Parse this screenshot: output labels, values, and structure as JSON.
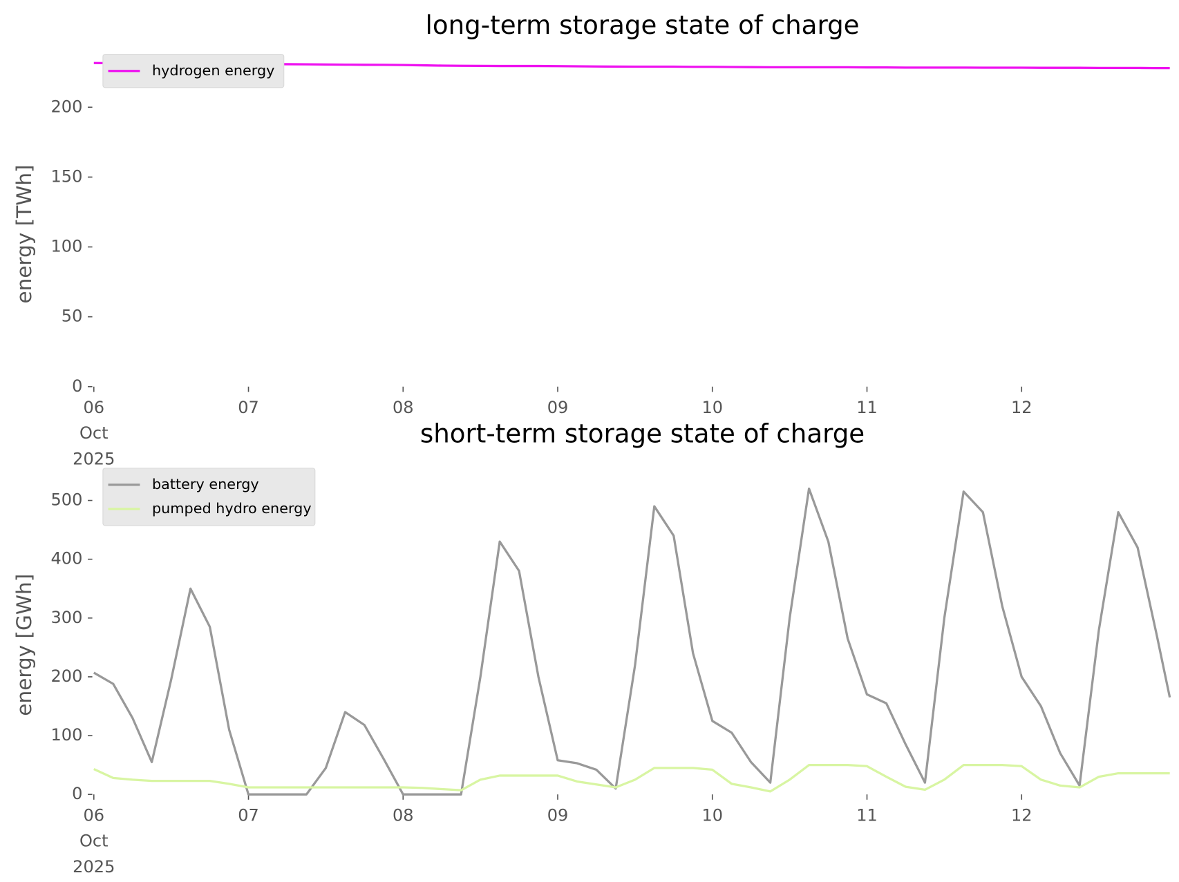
{
  "chart_data": [
    {
      "type": "line",
      "title": "long-term storage state of charge",
      "y_label": "energy [TWh]",
      "x": [
        "2025-10-06T00:00",
        "2025-10-06T03:00",
        "2025-10-06T06:00",
        "2025-10-06T09:00",
        "2025-10-06T12:00",
        "2025-10-06T15:00",
        "2025-10-06T18:00",
        "2025-10-06T21:00",
        "2025-10-07T00:00",
        "2025-10-07T03:00",
        "2025-10-07T06:00",
        "2025-10-07T09:00",
        "2025-10-07T12:00",
        "2025-10-07T15:00",
        "2025-10-07T18:00",
        "2025-10-07T21:00",
        "2025-10-08T00:00",
        "2025-10-08T03:00",
        "2025-10-08T06:00",
        "2025-10-08T09:00",
        "2025-10-08T12:00",
        "2025-10-08T15:00",
        "2025-10-08T18:00",
        "2025-10-08T21:00",
        "2025-10-09T00:00",
        "2025-10-09T03:00",
        "2025-10-09T06:00",
        "2025-10-09T09:00",
        "2025-10-09T12:00",
        "2025-10-09T15:00",
        "2025-10-09T18:00",
        "2025-10-09T21:00",
        "2025-10-10T00:00",
        "2025-10-10T03:00",
        "2025-10-10T06:00",
        "2025-10-10T09:00",
        "2025-10-10T12:00",
        "2025-10-10T15:00",
        "2025-10-10T18:00",
        "2025-10-10T21:00",
        "2025-10-11T00:00",
        "2025-10-11T03:00",
        "2025-10-11T06:00",
        "2025-10-11T09:00",
        "2025-10-11T12:00",
        "2025-10-11T15:00",
        "2025-10-11T18:00",
        "2025-10-11T21:00",
        "2025-10-12T00:00",
        "2025-10-12T03:00",
        "2025-10-12T06:00",
        "2025-10-12T09:00",
        "2025-10-12T12:00",
        "2025-10-12T15:00",
        "2025-10-12T18:00",
        "2025-10-12T21:00",
        "2025-10-12T23:00"
      ],
      "series": [
        {
          "name": "hydrogen energy",
          "color": "#ee12f0",
          "values": [
            231.6,
            231.5,
            231.4,
            231.3,
            231.2,
            231.1,
            231.0,
            231.0,
            230.9,
            230.9,
            230.8,
            230.7,
            230.6,
            230.5,
            230.4,
            230.3,
            230.2,
            230.0,
            229.8,
            229.7,
            229.6,
            229.5,
            229.5,
            229.5,
            229.4,
            229.3,
            229.2,
            229.1,
            229.0,
            229.0,
            229.0,
            228.9,
            228.9,
            228.8,
            228.7,
            228.6,
            228.6,
            228.6,
            228.6,
            228.6,
            228.5,
            228.5,
            228.4,
            228.4,
            228.4,
            228.4,
            228.3,
            228.3,
            228.3,
            228.2,
            228.2,
            228.2,
            228.1,
            228.1,
            228.1,
            228.0,
            228.0
          ]
        }
      ],
      "xlim": [
        "2025-10-06T00:00",
        "2025-10-12T23:00"
      ],
      "xticks": [
        {
          "value": "2025-10-06T00:00",
          "label": "06\nOct\n2025"
        },
        {
          "value": "2025-10-07T00:00",
          "label": "07"
        },
        {
          "value": "2025-10-08T00:00",
          "label": "08"
        },
        {
          "value": "2025-10-09T00:00",
          "label": "09"
        },
        {
          "value": "2025-10-10T00:00",
          "label": "10"
        },
        {
          "value": "2025-10-11T00:00",
          "label": "11"
        },
        {
          "value": "2025-10-12T00:00",
          "label": "12"
        }
      ],
      "ylim": [
        0,
        240
      ],
      "yticks": [
        0,
        50,
        100,
        150,
        200
      ],
      "legend": "upper left",
      "grid": false
    },
    {
      "type": "line",
      "title": "short-term storage state of charge",
      "y_label": "energy [GWh]",
      "x": [
        "2025-10-06T00:00",
        "2025-10-06T03:00",
        "2025-10-06T06:00",
        "2025-10-06T09:00",
        "2025-10-06T12:00",
        "2025-10-06T15:00",
        "2025-10-06T18:00",
        "2025-10-06T21:00",
        "2025-10-07T00:00",
        "2025-10-07T03:00",
        "2025-10-07T06:00",
        "2025-10-07T09:00",
        "2025-10-07T12:00",
        "2025-10-07T15:00",
        "2025-10-07T18:00",
        "2025-10-07T21:00",
        "2025-10-08T00:00",
        "2025-10-08T03:00",
        "2025-10-08T06:00",
        "2025-10-08T09:00",
        "2025-10-08T12:00",
        "2025-10-08T15:00",
        "2025-10-08T18:00",
        "2025-10-08T21:00",
        "2025-10-09T00:00",
        "2025-10-09T03:00",
        "2025-10-09T06:00",
        "2025-10-09T09:00",
        "2025-10-09T12:00",
        "2025-10-09T15:00",
        "2025-10-09T18:00",
        "2025-10-09T21:00",
        "2025-10-10T00:00",
        "2025-10-10T03:00",
        "2025-10-10T06:00",
        "2025-10-10T09:00",
        "2025-10-10T12:00",
        "2025-10-10T15:00",
        "2025-10-10T18:00",
        "2025-10-10T21:00",
        "2025-10-11T00:00",
        "2025-10-11T03:00",
        "2025-10-11T06:00",
        "2025-10-11T09:00",
        "2025-10-11T12:00",
        "2025-10-11T15:00",
        "2025-10-11T18:00",
        "2025-10-11T21:00",
        "2025-10-12T00:00",
        "2025-10-12T03:00",
        "2025-10-12T06:00",
        "2025-10-12T09:00",
        "2025-10-12T12:00",
        "2025-10-12T15:00",
        "2025-10-12T18:00",
        "2025-10-12T21:00",
        "2025-10-12T23:00"
      ],
      "series": [
        {
          "name": "battery energy",
          "color": "#999999",
          "values": [
            207,
            188,
            130,
            55,
            195,
            350,
            285,
            110,
            0,
            0,
            0,
            0,
            45,
            140,
            118,
            60,
            0,
            0,
            0,
            0,
            200,
            430,
            380,
            200,
            58,
            53,
            42,
            10,
            220,
            490,
            440,
            240,
            125,
            105,
            55,
            20,
            300,
            520,
            430,
            265,
            170,
            155,
            85,
            20,
            300,
            515,
            480,
            320,
            200,
            150,
            70,
            15,
            280,
            480,
            420,
            270,
            165
          ]
        },
        {
          "name": "pumped hydro energy",
          "color": "#d8f5a2",
          "values": [
            43,
            28,
            25,
            23,
            23,
            23,
            23,
            18,
            12,
            12,
            12,
            12,
            12,
            12,
            12,
            12,
            12,
            11,
            9,
            7,
            25,
            32,
            32,
            32,
            32,
            22,
            17,
            12,
            25,
            45,
            45,
            45,
            42,
            18,
            12,
            5,
            25,
            50,
            50,
            50,
            48,
            30,
            13,
            8,
            25,
            50,
            50,
            50,
            48,
            25,
            15,
            12,
            30,
            36,
            36,
            36,
            36
          ]
        }
      ],
      "xlim": [
        "2025-10-06T00:00",
        "2025-10-12T23:00"
      ],
      "xticks": [
        {
          "value": "2025-10-06T00:00",
          "label": "06\nOct\n2025"
        },
        {
          "value": "2025-10-07T00:00",
          "label": "07"
        },
        {
          "value": "2025-10-08T00:00",
          "label": "08"
        },
        {
          "value": "2025-10-09T00:00",
          "label": "09"
        },
        {
          "value": "2025-10-10T00:00",
          "label": "10"
        },
        {
          "value": "2025-10-11T00:00",
          "label": "11"
        },
        {
          "value": "2025-10-12T00:00",
          "label": "12"
        }
      ],
      "ylim": [
        0,
        560
      ],
      "yticks": [
        0,
        100,
        200,
        300,
        400,
        500
      ],
      "legend": "upper left",
      "grid": false
    }
  ]
}
